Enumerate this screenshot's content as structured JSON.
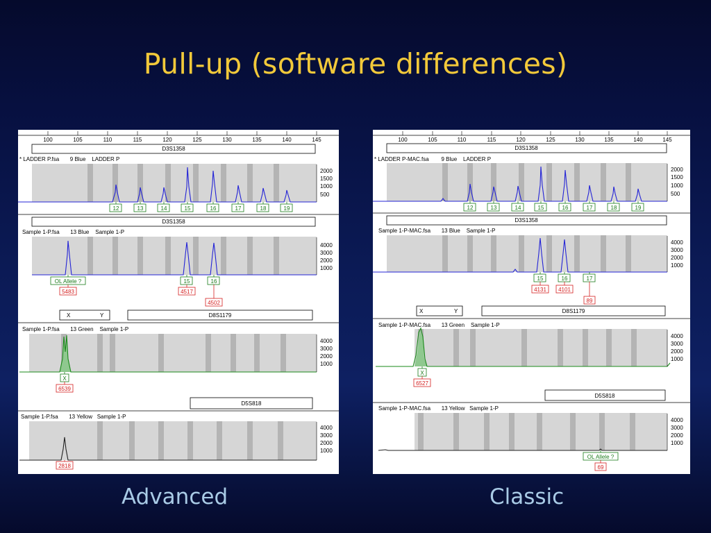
{
  "title": "Pull-up (software differences)",
  "colors": {
    "title": "#f2c93a",
    "label": "#a9cbe6",
    "blue": "#2323d6",
    "green": "#1a8a1a",
    "yellow": "#222222",
    "bin_label": "#1a7a1a",
    "size_label": "#d42020"
  },
  "advanced": {
    "label": "Advanced",
    "ruler": [
      "100",
      "105",
      "110",
      "115",
      "120",
      "125",
      "130",
      "135",
      "140",
      "145"
    ],
    "panes": [
      {
        "marker": "D3S1358",
        "info": "* LADDER P.fsa       9 Blue    LADDER P",
        "scale": [
          "2000",
          "1500",
          "1000",
          "500"
        ],
        "alleles": [
          "12",
          "13",
          "14",
          "15",
          "16",
          "17",
          "18",
          "19"
        ],
        "sizes": []
      },
      {
        "marker": "D3S1358",
        "info": "Sample 1-P.fsa       13 Blue    Sample 1-P",
        "scale": [
          "4000",
          "3000",
          "2000",
          "1000"
        ],
        "alleles": [
          "OL Allele ?",
          "15",
          "16"
        ],
        "sizes": [
          "5483",
          "4517",
          "4502"
        ]
      },
      {
        "marker": "D8S1179",
        "xy": [
          "X",
          "Y"
        ],
        "info": "Sample 1-P.fsa       13 Green    Sample 1-P",
        "scale": [
          "4000",
          "3000",
          "2000",
          "1000"
        ],
        "alleles": [
          "X"
        ],
        "sizes": [
          "6539"
        ]
      },
      {
        "marker": "D5S818",
        "info": "Sample 1-P.fsa       13 Yellow   Sample 1-P",
        "scale": [
          "4000",
          "3000",
          "2000",
          "1000"
        ],
        "alleles": [],
        "sizes": [
          "2818"
        ]
      }
    ]
  },
  "classic": {
    "label": "Classic",
    "ruler": [
      "100",
      "105",
      "110",
      "115",
      "120",
      "125",
      "130",
      "135",
      "140",
      "145"
    ],
    "panes": [
      {
        "marker": "D3S1358",
        "info": "* LADDER P-MAC.fsa        9 Blue    LADDER P",
        "scale": [
          "2000",
          "1500",
          "1000",
          "500"
        ],
        "alleles": [
          "12",
          "13",
          "14",
          "15",
          "16",
          "17",
          "18",
          "19"
        ],
        "sizes": []
      },
      {
        "marker": "D3S1358",
        "info": "Sample 1-P-MAC.fsa       13 Blue    Sample 1-P",
        "scale": [
          "4000",
          "3000",
          "2000",
          "1000"
        ],
        "alleles": [
          "15",
          "16",
          "17"
        ],
        "sizes": [
          "4131",
          "4101",
          "89"
        ]
      },
      {
        "marker": "D8S1179",
        "xy": [
          "X",
          "Y"
        ],
        "info": "Sample 1-P-MAC.fsa       13 Green    Sample 1-P",
        "scale": [
          "4000",
          "3000",
          "2000",
          "1000"
        ],
        "alleles": [
          "X"
        ],
        "sizes": [
          "6527"
        ]
      },
      {
        "marker": "D5S818",
        "info": "Sample 1-P-MAC.fsa       13 Yellow   Sample 1-P",
        "scale": [
          "4000",
          "3000",
          "2000",
          "1000"
        ],
        "alleles": [
          "OL Allele ?"
        ],
        "sizes": [
          "69"
        ]
      }
    ]
  }
}
